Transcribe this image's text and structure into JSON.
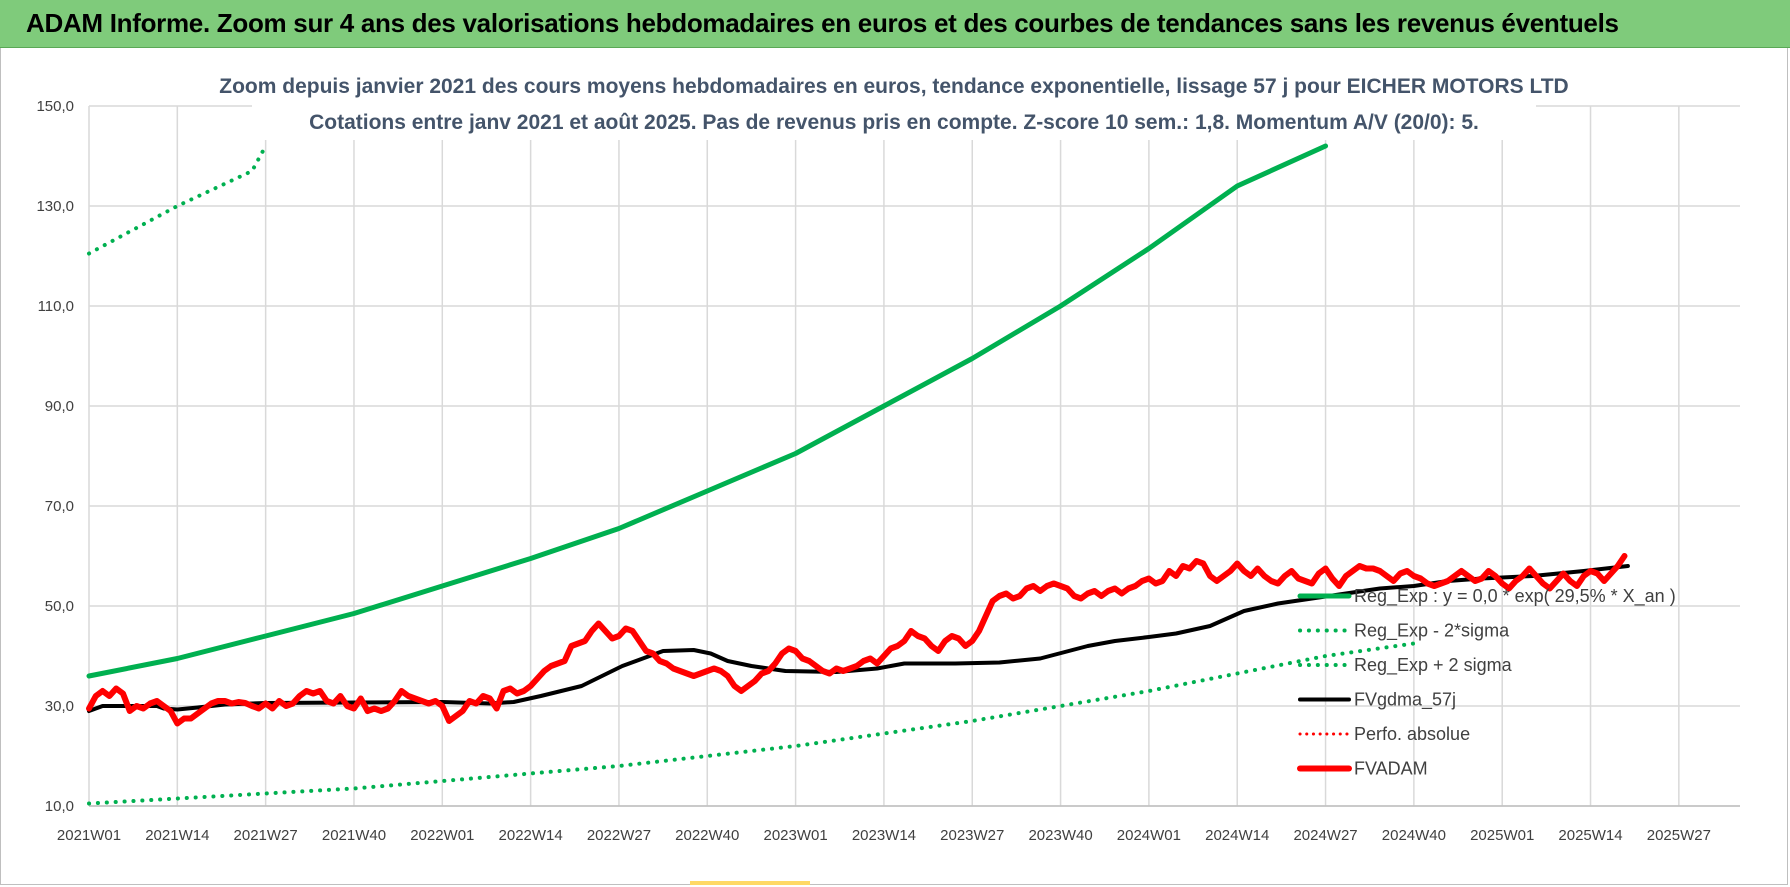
{
  "banner": {
    "title": "ADAM Informe. Zoom sur 4 ans des valorisations hebdomadaires en euros et des courbes de tendances sans les revenus éventuels",
    "color": "#7fcb7b"
  },
  "chart_data": {
    "type": "line",
    "title": "Zoom depuis janvier 2021 des cours moyens hebdomadaires en euros, tendance exponentielle, lissage 57 j pour EICHER MOTORS LTD",
    "subtitle": "Cotations entre janv 2021 et août 2025. Pas de revenus pris en compte. Z-score 10 sem.: 1,8. Momentum A/V (20/0): 5.",
    "xlabel": "",
    "ylabel": "",
    "ylim": [
      10,
      150
    ],
    "yticks": [
      "10,0",
      "30,0",
      "50,0",
      "70,0",
      "90,0",
      "110,0",
      "130,0",
      "150,0"
    ],
    "xticks": [
      "2021W01",
      "2021W14",
      "2021W27",
      "2021W40",
      "2022W01",
      "2022W14",
      "2022W27",
      "2022W40",
      "2023W01",
      "2023W14",
      "2023W27",
      "2023W40",
      "2024W01",
      "2024W14",
      "2024W27",
      "2024W40",
      "2025W01",
      "2025W14",
      "2025W27"
    ],
    "x_range_weeks": [
      0,
      243
    ],
    "grid": true,
    "legend_position": "right",
    "series": [
      {
        "name": "Reg_Exp : y = 0,0 * exp( 29,5% * X_an )",
        "color": "#00b050",
        "style": "solid",
        "width": 5,
        "points": [
          [
            0,
            36
          ],
          [
            26,
            39.5
          ],
          [
            52,
            44
          ],
          [
            78,
            48.5
          ],
          [
            104,
            54
          ],
          [
            130,
            59.5
          ],
          [
            156,
            65.5
          ],
          [
            182,
            73
          ],
          [
            208,
            80.5
          ],
          [
            234,
            90
          ],
          [
            260,
            99.5
          ],
          [
            286,
            110
          ],
          [
            312,
            121.5
          ],
          [
            338,
            134
          ],
          [
            364,
            142
          ]
        ]
      },
      {
        "name": "Reg_Exp - 2*sigma",
        "color": "#00b050",
        "style": "dotted",
        "width": 4,
        "points": [
          [
            0,
            10.5
          ],
          [
            26,
            11.5
          ],
          [
            52,
            12.5
          ],
          [
            78,
            13.5
          ],
          [
            104,
            15
          ],
          [
            130,
            16.5
          ],
          [
            156,
            18
          ],
          [
            182,
            20
          ],
          [
            208,
            22
          ],
          [
            234,
            24.5
          ],
          [
            260,
            27
          ],
          [
            286,
            30
          ],
          [
            312,
            33
          ],
          [
            338,
            36.5
          ],
          [
            364,
            40
          ],
          [
            390,
            42.5
          ]
        ]
      },
      {
        "name": "Reg_Exp + 2 sigma",
        "color": "#00b050",
        "style": "dotted",
        "width": 4,
        "points": [
          [
            0,
            120.5
          ],
          [
            26,
            130
          ],
          [
            48,
            137
          ],
          [
            52,
            142
          ]
        ],
        "upper_segment": [
          [
            300,
            150
          ],
          [
            390,
            150
          ]
        ]
      },
      {
        "name": "FVgdma_57j",
        "color": "#000000",
        "style": "solid",
        "width": 4,
        "points": [
          [
            0,
            29
          ],
          [
            4,
            30
          ],
          [
            20,
            30
          ],
          [
            22,
            29.5
          ],
          [
            26,
            29.3
          ],
          [
            32,
            29.7
          ],
          [
            40,
            30.3
          ],
          [
            52,
            30.6
          ],
          [
            78,
            30.7
          ],
          [
            104,
            30.8
          ],
          [
            118,
            30.5
          ],
          [
            125,
            30.8
          ],
          [
            133,
            32
          ],
          [
            145,
            34
          ],
          [
            157,
            38
          ],
          [
            165,
            40
          ],
          [
            169,
            41
          ],
          [
            178,
            41.2
          ],
          [
            183,
            40.5
          ],
          [
            188,
            39
          ],
          [
            195,
            38
          ],
          [
            205,
            37
          ],
          [
            220,
            36.8
          ],
          [
            232,
            37.5
          ],
          [
            240,
            38.5
          ],
          [
            255,
            38.5
          ],
          [
            268,
            38.7
          ],
          [
            280,
            39.5
          ],
          [
            294,
            42
          ],
          [
            302,
            43
          ],
          [
            312,
            43.8
          ],
          [
            320,
            44.5
          ],
          [
            330,
            46
          ],
          [
            340,
            49
          ],
          [
            350,
            50.5
          ],
          [
            360,
            51.5
          ],
          [
            370,
            52.5
          ],
          [
            380,
            53.5
          ],
          [
            390,
            54
          ],
          [
            400,
            55
          ],
          [
            410,
            55.5
          ],
          [
            425,
            56
          ],
          [
            440,
            57
          ],
          [
            453,
            58
          ]
        ]
      },
      {
        "name": "Perfo. absolue",
        "color": "#ff0000",
        "style": "dotted",
        "width": 3,
        "points": []
      },
      {
        "name": "FVADAM",
        "color": "#ff0000",
        "style": "solid",
        "width": 6,
        "points": [
          [
            0,
            29.5
          ],
          [
            2,
            32
          ],
          [
            4,
            33
          ],
          [
            6,
            32
          ],
          [
            8,
            33.5
          ],
          [
            10,
            32.5
          ],
          [
            12,
            29
          ],
          [
            14,
            30
          ],
          [
            16,
            29.5
          ],
          [
            18,
            30.5
          ],
          [
            20,
            31
          ],
          [
            22,
            30
          ],
          [
            24,
            29
          ],
          [
            26,
            26.5
          ],
          [
            28,
            27.5
          ],
          [
            30,
            27.5
          ],
          [
            32,
            28.5
          ],
          [
            34,
            29.5
          ],
          [
            36,
            30.5
          ],
          [
            38,
            31
          ],
          [
            40,
            31
          ],
          [
            42,
            30.5
          ],
          [
            44,
            30.8
          ],
          [
            46,
            30.6
          ],
          [
            48,
            30
          ],
          [
            50,
            29.5
          ],
          [
            52,
            30.5
          ],
          [
            54,
            29.5
          ],
          [
            56,
            31
          ],
          [
            58,
            30
          ],
          [
            60,
            30.5
          ],
          [
            62,
            32
          ],
          [
            64,
            33
          ],
          [
            66,
            32.5
          ],
          [
            68,
            33
          ],
          [
            70,
            31
          ],
          [
            72,
            30.5
          ],
          [
            74,
            32
          ],
          [
            76,
            30
          ],
          [
            78,
            29.5
          ],
          [
            80,
            31.5
          ],
          [
            82,
            29
          ],
          [
            84,
            29.5
          ],
          [
            86,
            29
          ],
          [
            88,
            29.5
          ],
          [
            90,
            31
          ],
          [
            92,
            33
          ],
          [
            94,
            32
          ],
          [
            96,
            31.5
          ],
          [
            98,
            31
          ],
          [
            100,
            30.5
          ],
          [
            102,
            31
          ],
          [
            104,
            30
          ],
          [
            106,
            27
          ],
          [
            108,
            28
          ],
          [
            110,
            29
          ],
          [
            112,
            31
          ],
          [
            114,
            30.5
          ],
          [
            116,
            32
          ],
          [
            118,
            31.5
          ],
          [
            120,
            29.5
          ],
          [
            122,
            33
          ],
          [
            124,
            33.5
          ],
          [
            126,
            32.5
          ],
          [
            128,
            33
          ],
          [
            130,
            34
          ],
          [
            132,
            35.5
          ],
          [
            134,
            37
          ],
          [
            136,
            38
          ],
          [
            138,
            38.5
          ],
          [
            140,
            39
          ],
          [
            142,
            42
          ],
          [
            144,
            42.5
          ],
          [
            146,
            43
          ],
          [
            148,
            45
          ],
          [
            150,
            46.5
          ],
          [
            152,
            45
          ],
          [
            154,
            43.5
          ],
          [
            156,
            44
          ],
          [
            158,
            45.5
          ],
          [
            160,
            45
          ],
          [
            162,
            43
          ],
          [
            164,
            41
          ],
          [
            166,
            40.5
          ],
          [
            168,
            39
          ],
          [
            170,
            38.5
          ],
          [
            172,
            37.5
          ],
          [
            174,
            37
          ],
          [
            176,
            36.5
          ],
          [
            178,
            36
          ],
          [
            180,
            36.5
          ],
          [
            182,
            37
          ],
          [
            184,
            37.5
          ],
          [
            186,
            37
          ],
          [
            188,
            36
          ],
          [
            190,
            34
          ],
          [
            192,
            33
          ],
          [
            194,
            34
          ],
          [
            196,
            35
          ],
          [
            198,
            36.5
          ],
          [
            200,
            37
          ],
          [
            202,
            38.5
          ],
          [
            204,
            40.5
          ],
          [
            206,
            41.5
          ],
          [
            208,
            41
          ],
          [
            210,
            39.5
          ],
          [
            212,
            39
          ],
          [
            214,
            38
          ],
          [
            216,
            37
          ],
          [
            218,
            36.5
          ],
          [
            220,
            37.5
          ],
          [
            222,
            37
          ],
          [
            224,
            37.5
          ],
          [
            226,
            38
          ],
          [
            228,
            39
          ],
          [
            230,
            39.5
          ],
          [
            232,
            38.5
          ],
          [
            234,
            40
          ],
          [
            236,
            41.5
          ],
          [
            238,
            42
          ],
          [
            240,
            43
          ],
          [
            242,
            45
          ],
          [
            244,
            44
          ],
          [
            246,
            43.5
          ],
          [
            248,
            42
          ],
          [
            250,
            41
          ],
          [
            252,
            43
          ],
          [
            254,
            44
          ],
          [
            256,
            43.5
          ],
          [
            258,
            42
          ],
          [
            260,
            43
          ],
          [
            262,
            45
          ],
          [
            264,
            48
          ],
          [
            266,
            51
          ],
          [
            268,
            52
          ],
          [
            270,
            52.5
          ],
          [
            272,
            51.5
          ],
          [
            274,
            52
          ],
          [
            276,
            53.5
          ],
          [
            278,
            54
          ],
          [
            280,
            53
          ],
          [
            282,
            54
          ],
          [
            284,
            54.5
          ],
          [
            286,
            54
          ],
          [
            288,
            53.5
          ],
          [
            290,
            52
          ],
          [
            292,
            51.5
          ],
          [
            294,
            52.5
          ],
          [
            296,
            53
          ],
          [
            298,
            52
          ],
          [
            300,
            53
          ],
          [
            302,
            53.5
          ],
          [
            304,
            52.5
          ],
          [
            306,
            53.5
          ],
          [
            308,
            54
          ],
          [
            310,
            55
          ],
          [
            312,
            55.5
          ],
          [
            314,
            54.5
          ],
          [
            316,
            55
          ],
          [
            318,
            57
          ],
          [
            320,
            56
          ],
          [
            322,
            58
          ],
          [
            324,
            57.5
          ],
          [
            326,
            59
          ],
          [
            328,
            58.5
          ],
          [
            330,
            56
          ],
          [
            332,
            55
          ],
          [
            334,
            56
          ],
          [
            336,
            57
          ],
          [
            338,
            58.5
          ],
          [
            340,
            57
          ],
          [
            342,
            56
          ],
          [
            344,
            57.5
          ],
          [
            346,
            56
          ],
          [
            348,
            55
          ],
          [
            350,
            54.5
          ],
          [
            352,
            56
          ],
          [
            354,
            57
          ],
          [
            356,
            55.5
          ],
          [
            358,
            55
          ],
          [
            360,
            54.5
          ],
          [
            362,
            56.5
          ],
          [
            364,
            57.5
          ],
          [
            366,
            55.5
          ],
          [
            368,
            54
          ],
          [
            370,
            56
          ],
          [
            372,
            57
          ],
          [
            374,
            58
          ],
          [
            376,
            57.5
          ],
          [
            378,
            57.5
          ],
          [
            380,
            57
          ],
          [
            382,
            56
          ],
          [
            384,
            55
          ],
          [
            386,
            56.5
          ],
          [
            388,
            57
          ],
          [
            390,
            56
          ],
          [
            392,
            55.5
          ],
          [
            394,
            54.5
          ],
          [
            396,
            54
          ],
          [
            398,
            54.5
          ],
          [
            400,
            55
          ],
          [
            402,
            56
          ],
          [
            404,
            57
          ],
          [
            406,
            56
          ],
          [
            408,
            55
          ],
          [
            410,
            55.5
          ],
          [
            412,
            57
          ],
          [
            414,
            56
          ],
          [
            416,
            54.5
          ],
          [
            418,
            53.5
          ],
          [
            420,
            55
          ],
          [
            422,
            56
          ],
          [
            424,
            57.5
          ],
          [
            426,
            56
          ],
          [
            428,
            54.5
          ],
          [
            430,
            53.5
          ],
          [
            432,
            55
          ],
          [
            434,
            56.5
          ],
          [
            436,
            55
          ],
          [
            438,
            54
          ],
          [
            440,
            56
          ],
          [
            442,
            57
          ],
          [
            444,
            56.5
          ],
          [
            446,
            55
          ],
          [
            448,
            56.5
          ],
          [
            450,
            58
          ],
          [
            452,
            60
          ]
        ]
      }
    ]
  }
}
